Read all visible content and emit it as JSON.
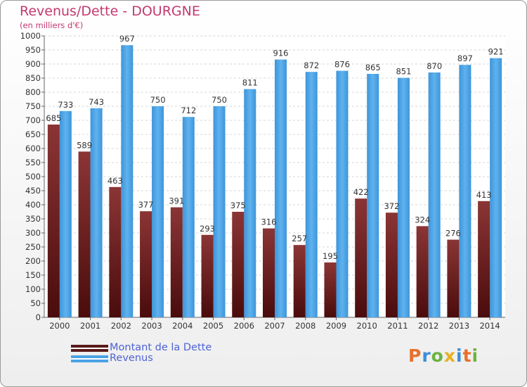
{
  "header": {
    "title": "Revenus/Dette - DOURGNE",
    "subtitle": "(en milliers d'€)"
  },
  "chart_data": {
    "type": "bar",
    "categories": [
      "2000",
      "2001",
      "2002",
      "2003",
      "2004",
      "2005",
      "2006",
      "2007",
      "2008",
      "2009",
      "2010",
      "2011",
      "2012",
      "2013",
      "2014"
    ],
    "series": [
      {
        "name": "Montant de la Dette",
        "values": [
          685,
          589,
          463,
          377,
          391,
          293,
          375,
          316,
          257,
          195,
          422,
          372,
          324,
          276,
          413
        ],
        "color": "#7b2a2a"
      },
      {
        "name": "Revenus",
        "values": [
          733,
          743,
          967,
          750,
          712,
          750,
          811,
          916,
          872,
          876,
          865,
          851,
          870,
          897,
          921
        ],
        "color": "#4aa3e6"
      }
    ],
    "data_labels": [
      [
        "685",
        "589",
        "463",
        "377",
        "391",
        "293",
        "375",
        "316",
        "257",
        "195",
        "422",
        "372",
        "324",
        "276",
        "413"
      ],
      [
        "733",
        "743",
        "967",
        "750",
        "712",
        "750",
        "811",
        "916",
        "872",
        "876",
        "865",
        "851",
        "870",
        "897",
        "921"
      ]
    ],
    "ylim": [
      0,
      1000
    ],
    "yticks": [
      0,
      50,
      100,
      150,
      200,
      250,
      300,
      350,
      400,
      450,
      500,
      550,
      600,
      650,
      700,
      750,
      800,
      850,
      900,
      950,
      1000
    ],
    "ytick_labels": [
      "0",
      "50",
      "100",
      "150",
      "200",
      "250",
      "300",
      "350",
      "400",
      "450",
      "500",
      "550",
      "600",
      "650",
      "700",
      "750",
      "800",
      "850",
      "900",
      "950",
      "1000"
    ],
    "grid": true,
    "legend_position": "bottom-left"
  },
  "legend": {
    "items": [
      {
        "label": "Montant de la Dette",
        "color": "#5a1a1a"
      },
      {
        "label": "Revenus",
        "color": "#4aa3e6"
      }
    ]
  },
  "logo": {
    "letters": [
      "P",
      "r",
      "o",
      "x",
      "i",
      "t",
      "i"
    ],
    "colors": [
      "#e8702a",
      "#3a8fd6",
      "#6cb33f",
      "#e8b020",
      "#3a8fd6",
      "#e8702a",
      "#6cb33f"
    ]
  }
}
